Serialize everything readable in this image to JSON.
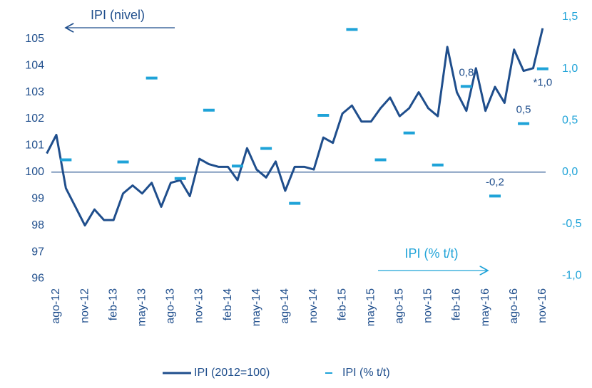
{
  "chart_data": {
    "type": "line",
    "categories": [
      null,
      "ago-12",
      null,
      null,
      "nov-12",
      null,
      null,
      "feb-13",
      null,
      null,
      "may-13",
      null,
      null,
      "ago-13",
      null,
      null,
      "nov-13",
      null,
      null,
      "feb-14",
      null,
      null,
      "may-14",
      null,
      null,
      "ago-14",
      null,
      null,
      "nov-14",
      null,
      null,
      "feb-15",
      null,
      null,
      "may-15",
      null,
      null,
      "ago-15",
      null,
      null,
      "nov-15",
      null,
      null,
      "feb-16",
      null,
      null,
      "may-16",
      null,
      null,
      "ago-16",
      null,
      null,
      "nov-16"
    ],
    "series": [
      {
        "name": "IPI (2012=100)",
        "color": "#1f4e8c",
        "type": "line",
        "values": [
          100.7,
          101.4,
          99.4,
          98.7,
          98.0,
          98.6,
          98.2,
          98.2,
          99.2,
          99.5,
          99.2,
          99.6,
          98.7,
          99.6,
          99.7,
          99.1,
          100.5,
          100.3,
          100.2,
          100.2,
          99.7,
          100.9,
          100.1,
          99.8,
          100.4,
          99.3,
          100.2,
          100.2,
          100.1,
          101.3,
          101.1,
          102.2,
          102.5,
          101.9,
          101.9,
          102.4,
          102.8,
          102.1,
          102.4,
          103.0,
          102.4,
          102.1,
          104.7,
          103.0,
          102.3,
          103.9,
          102.3,
          103.2,
          102.6,
          104.6,
          103.8,
          103.9,
          105.4
        ]
      },
      {
        "name": "IPI (% t/t)",
        "color": "#1fa3d8",
        "type": "dash",
        "axis": "y2",
        "values": [
          null,
          null,
          0.12,
          null,
          null,
          null,
          null,
          null,
          0.1,
          null,
          null,
          0.91,
          null,
          null,
          -0.06,
          null,
          null,
          0.6,
          null,
          null,
          0.06,
          null,
          null,
          0.23,
          null,
          null,
          -0.3,
          null,
          null,
          0.55,
          null,
          null,
          1.38,
          null,
          null,
          0.12,
          null,
          null,
          0.38,
          null,
          null,
          0.07,
          null,
          null,
          0.83,
          null,
          null,
          -0.23,
          null,
          null,
          0.47,
          null,
          1.0
        ],
        "value_labels": [
          null,
          null,
          null,
          null,
          null,
          null,
          null,
          null,
          null,
          null,
          null,
          null,
          null,
          null,
          null,
          null,
          null,
          null,
          null,
          null,
          null,
          null,
          null,
          null,
          null,
          null,
          null,
          null,
          null,
          null,
          null,
          null,
          null,
          null,
          null,
          null,
          null,
          null,
          null,
          null,
          null,
          null,
          null,
          null,
          "0,8",
          null,
          null,
          "-0,2",
          null,
          null,
          "0,5",
          null,
          "*1,0"
        ]
      }
    ],
    "ylim": [
      95.8,
      105.9
    ],
    "yticks": [
      96,
      97,
      98,
      99,
      100,
      101,
      102,
      103,
      104,
      105
    ],
    "y2lim": [
      -1.08,
      1.52
    ],
    "y2ticks": [
      {
        "value": -1.0,
        "label": "-1,0"
      },
      {
        "value": -0.5,
        "label": "-0,5"
      },
      {
        "value": 0.0,
        "label": "0,0"
      },
      {
        "value": 0.5,
        "label": "0,5"
      },
      {
        "value": 1.0,
        "label": "1,0"
      },
      {
        "value": 1.5,
        "label": "1,5"
      }
    ],
    "hline": 100,
    "annotations": [
      "IPI (nivel)",
      "IPI (% t/t)"
    ],
    "legend": "bottom"
  }
}
